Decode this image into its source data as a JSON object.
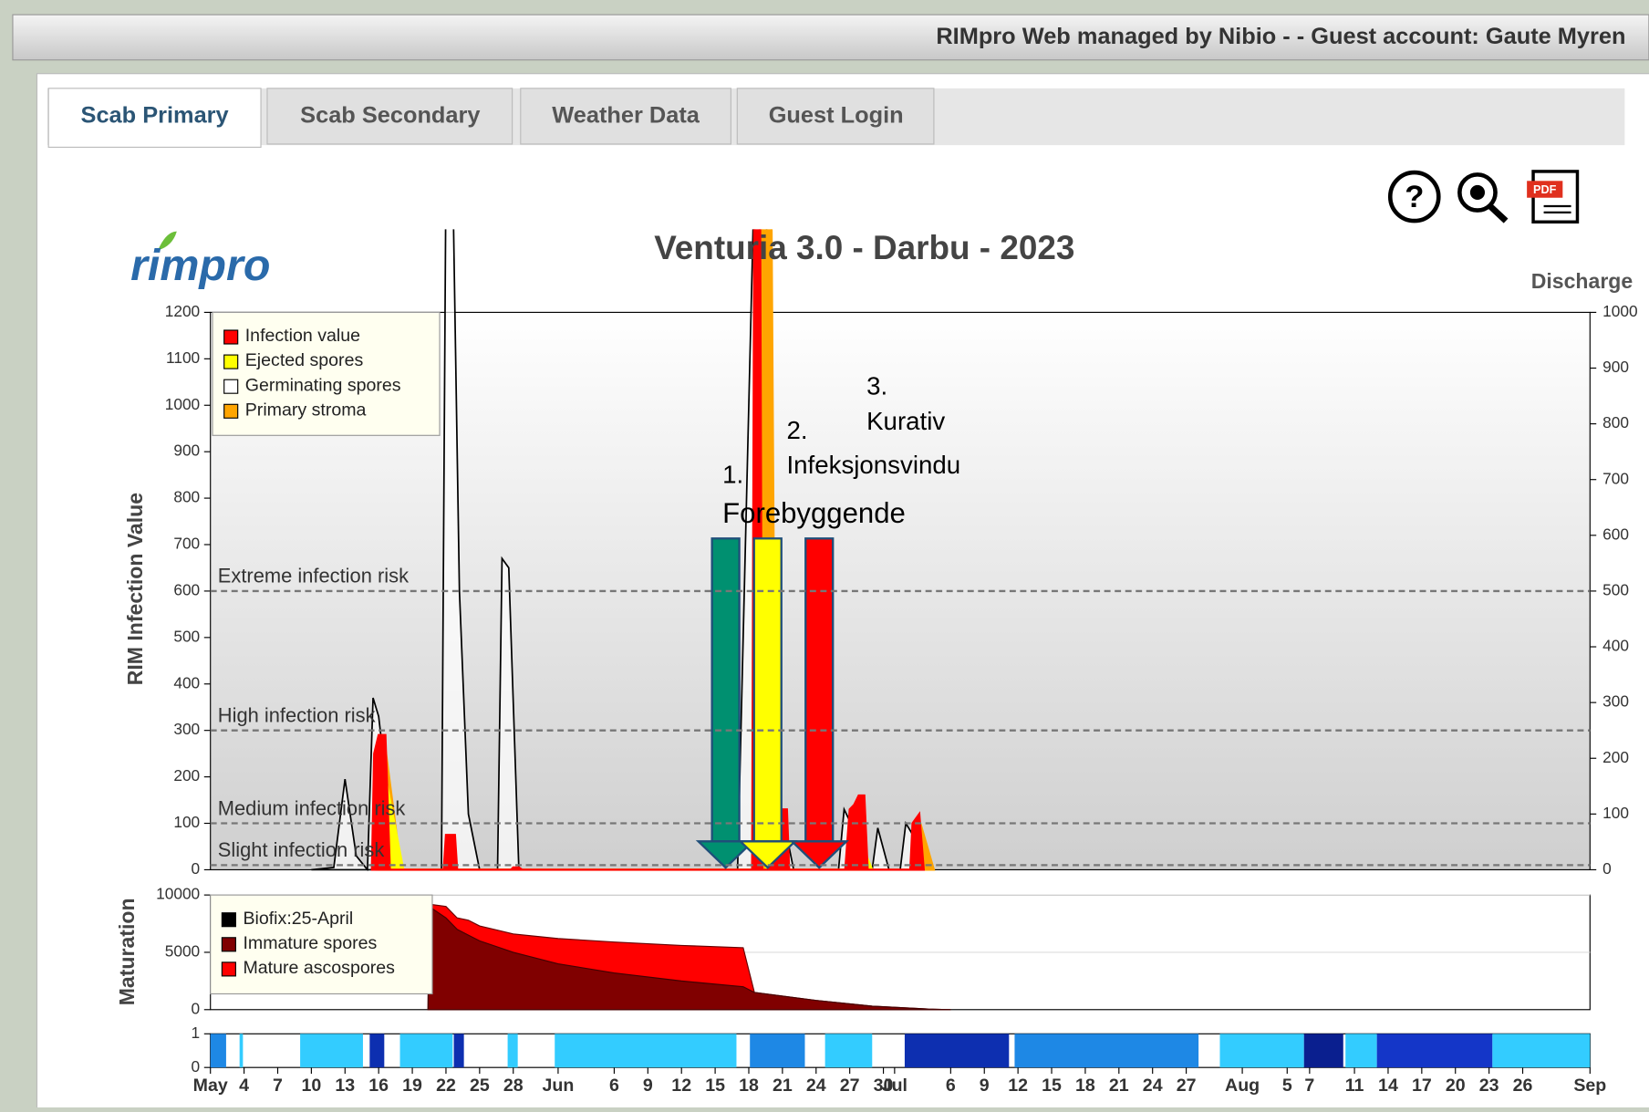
{
  "header": {
    "text": "RIMpro Web managed by Nibio - - Guest account: Gaute Myren"
  },
  "tabs": [
    "Scab Primary",
    "Scab Secondary",
    "Weather Data",
    "Guest Login"
  ],
  "logo": "rimpro",
  "annotations": [
    "1.",
    "Forebyggende",
    "2.",
    "Infeksjonsvindu",
    "3.",
    "Kurativ"
  ],
  "chart_data": [
    {
      "type": "line",
      "title": "Venturia 3.0 - Darbu - 2023",
      "y_label": "RIM Infection Value",
      "y2_label": "Discharge",
      "ylim": [
        0,
        1200
      ],
      "yticks": [
        0,
        100,
        200,
        300,
        400,
        500,
        600,
        700,
        800,
        900,
        1000,
        1100,
        1200
      ],
      "y2lim": [
        0,
        1000
      ],
      "y2ticks": [
        0,
        100,
        200,
        300,
        400,
        500,
        600,
        700,
        800,
        900,
        1000
      ],
      "thresholds": [
        {
          "label": "Extreme infection risk",
          "value": 600
        },
        {
          "label": "High infection risk",
          "value": 300
        },
        {
          "label": "Medium infection risk",
          "value": 100
        },
        {
          "label": "Slight infection risk",
          "value": 10
        }
      ],
      "legend": "top-left",
      "series": [
        {
          "name": "Infection value",
          "color": "#ff0000",
          "x": [
            15.4,
            15.6,
            16,
            16.6,
            17,
            21.8,
            22,
            22.8,
            23,
            27.8,
            28,
            28.5,
            28.8,
            49.3,
            49.5,
            50,
            50.2,
            50.8,
            51,
            51.3,
            51.5,
            51.6,
            51.8,
            52.4,
            52.6,
            57.6,
            58,
            58.4,
            58.8,
            59.3,
            59.6,
            63.4,
            63.6,
            64.2,
            64.6
          ],
          "values": [
            0,
            250,
            290,
            290,
            0,
            0,
            75,
            75,
            0,
            0,
            5,
            5,
            0,
            0,
            1500,
            1500,
            0,
            0,
            420,
            420,
            0,
            0,
            130,
            130,
            0,
            0,
            130,
            140,
            160,
            160,
            0,
            0,
            100,
            120,
            0
          ]
        },
        {
          "name": "Ejected spores",
          "color": "#ffff00",
          "x": [
            16,
            16.6,
            17.4,
            18.2,
            50.5,
            51,
            51.8,
            58.5,
            59,
            60
          ],
          "values": [
            0,
            200,
            100,
            0,
            0,
            60,
            0,
            0,
            60,
            0
          ]
        },
        {
          "name": "Germinating spores",
          "color": "#ffffff",
          "edge": "#000000",
          "x": [
            10,
            12,
            13,
            14,
            15,
            15.5,
            16,
            17,
            18,
            21.6,
            22,
            22.6,
            23.2,
            24,
            25,
            26.6,
            27,
            27.6,
            28.5,
            30,
            48,
            49.5,
            50.5,
            51.5,
            52.5,
            53,
            54,
            57,
            57.5,
            58.5,
            59.5,
            60,
            60.5,
            61.5,
            62.5,
            63,
            63.5,
            65
          ],
          "values": [
            0,
            5,
            195,
            30,
            0,
            370,
            330,
            120,
            0,
            0,
            1500,
            1500,
            600,
            120,
            0,
            0,
            670,
            650,
            0,
            0,
            0,
            1500,
            1500,
            150,
            60,
            0,
            0,
            0,
            130,
            80,
            0,
            0,
            90,
            0,
            0,
            100,
            80,
            0
          ]
        },
        {
          "name": "Primary stroma",
          "color": "#ffa500",
          "x": [
            15.8,
            16.5,
            17.2,
            18,
            49.8,
            50.2,
            51,
            51.4,
            57.8,
            58.3,
            59.5,
            63.8,
            64.3,
            65.5
          ],
          "values": [
            0,
            280,
            150,
            0,
            0,
            1500,
            1500,
            0,
            0,
            100,
            0,
            0,
            100,
            0
          ]
        }
      ]
    },
    {
      "type": "area",
      "y_label": "Maturation",
      "ylim": [
        0,
        10000
      ],
      "yticks": [
        0,
        5000,
        10000
      ],
      "legend": "top-left",
      "legend_items": [
        {
          "name": "Biofix:25-April",
          "color": "#000000"
        }
      ],
      "x": [
        20.4,
        20.5,
        22,
        23,
        24,
        25,
        28,
        32,
        37,
        43,
        48.5,
        49.5,
        55,
        60,
        65,
        67
      ],
      "series": [
        {
          "name": "Immature spores",
          "color": "#800000",
          "values": [
            0,
            9000,
            8000,
            7000,
            6500,
            6000,
            5000,
            4000,
            3200,
            2500,
            2000,
            1500,
            800,
            300,
            50,
            0
          ]
        },
        {
          "name": "Mature ascospores",
          "color": "#ff0000",
          "values": [
            0,
            200,
            1000,
            1000,
            1300,
            1300,
            1600,
            2200,
            2700,
            3100,
            3400,
            0,
            0,
            0,
            0,
            0
          ]
        }
      ]
    },
    {
      "type": "strip",
      "ylim": [
        0,
        1
      ],
      "yticks": [
        0,
        1
      ],
      "xlim": [
        1,
        124
      ],
      "xticks": [
        {
          "value": 1,
          "label": "May"
        },
        4,
        7,
        10,
        13,
        16,
        19,
        22,
        25,
        28,
        {
          "value": 32,
          "label": "Jun"
        },
        {
          "value": 37,
          "label": "6"
        },
        {
          "value": 40,
          "label": "9"
        },
        {
          "value": 43,
          "label": "12"
        },
        {
          "value": 46,
          "label": "15"
        },
        {
          "value": 49,
          "label": "18"
        },
        {
          "value": 52,
          "label": "21"
        },
        {
          "value": 55,
          "label": "24"
        },
        {
          "value": 58,
          "label": "27"
        },
        {
          "value": 61,
          "label": "30"
        },
        {
          "value": 62,
          "label": "Jul"
        },
        {
          "value": 67,
          "label": "6"
        },
        {
          "value": 70,
          "label": "9"
        },
        {
          "value": 73,
          "label": "12"
        },
        {
          "value": 76,
          "label": "15"
        },
        {
          "value": 79,
          "label": "18"
        },
        {
          "value": 82,
          "label": "21"
        },
        {
          "value": 85,
          "label": "24"
        },
        {
          "value": 88,
          "label": "27"
        },
        {
          "value": 93,
          "label": "Aug"
        },
        {
          "value": 97,
          "label": "5"
        },
        {
          "value": 99,
          "label": "7"
        },
        {
          "value": 103,
          "label": "11"
        },
        {
          "value": 106,
          "label": "14"
        },
        {
          "value": 109,
          "label": "17"
        },
        {
          "value": 112,
          "label": "20"
        },
        {
          "value": 115,
          "label": "23"
        },
        {
          "value": 118,
          "label": "26"
        },
        {
          "value": 124,
          "label": "Sep"
        }
      ],
      "periods": [
        {
          "x": [
            1,
            2.4
          ],
          "value": 1,
          "color": "#1e88e5"
        },
        {
          "x": [
            3.6,
            3.9
          ],
          "value": 1,
          "color": "#33ccff"
        },
        {
          "x": [
            9,
            14.6
          ],
          "value": 1,
          "color": "#33ccff"
        },
        {
          "x": [
            15.2,
            16.5
          ],
          "value": 1,
          "color": "#0d2fb0"
        },
        {
          "x": [
            17.9,
            22.6
          ],
          "value": 1,
          "color": "#33ccff"
        },
        {
          "x": [
            22.7,
            23.6
          ],
          "value": 1,
          "color": "#0d2fb0"
        },
        {
          "x": [
            27.5,
            28.4
          ],
          "value": 1,
          "color": "#33ccff"
        },
        {
          "x": [
            31.7,
            47.9
          ],
          "value": 1,
          "color": "#33ccff"
        },
        {
          "x": [
            49.1,
            54
          ],
          "value": 1,
          "color": "#1e88e5"
        },
        {
          "x": [
            55.8,
            60
          ],
          "value": 1,
          "color": "#33ccff"
        },
        {
          "x": [
            62.9,
            72.2
          ],
          "value": 1,
          "color": "#0d2fb0"
        },
        {
          "x": [
            72.7,
            89.1
          ],
          "value": 1,
          "color": "#1e88e5"
        },
        {
          "x": [
            91,
            98.5
          ],
          "value": 1,
          "color": "#33ccff"
        },
        {
          "x": [
            98.5,
            102
          ],
          "value": 1,
          "color": "#0a1f8f"
        },
        {
          "x": [
            102.2,
            105
          ],
          "value": 1,
          "color": "#33ccff"
        },
        {
          "x": [
            105,
            115.3
          ],
          "value": 1,
          "color": "#1436c8"
        },
        {
          "x": [
            115.3,
            124
          ],
          "value": 1,
          "color": "#33ccff"
        }
      ]
    }
  ]
}
